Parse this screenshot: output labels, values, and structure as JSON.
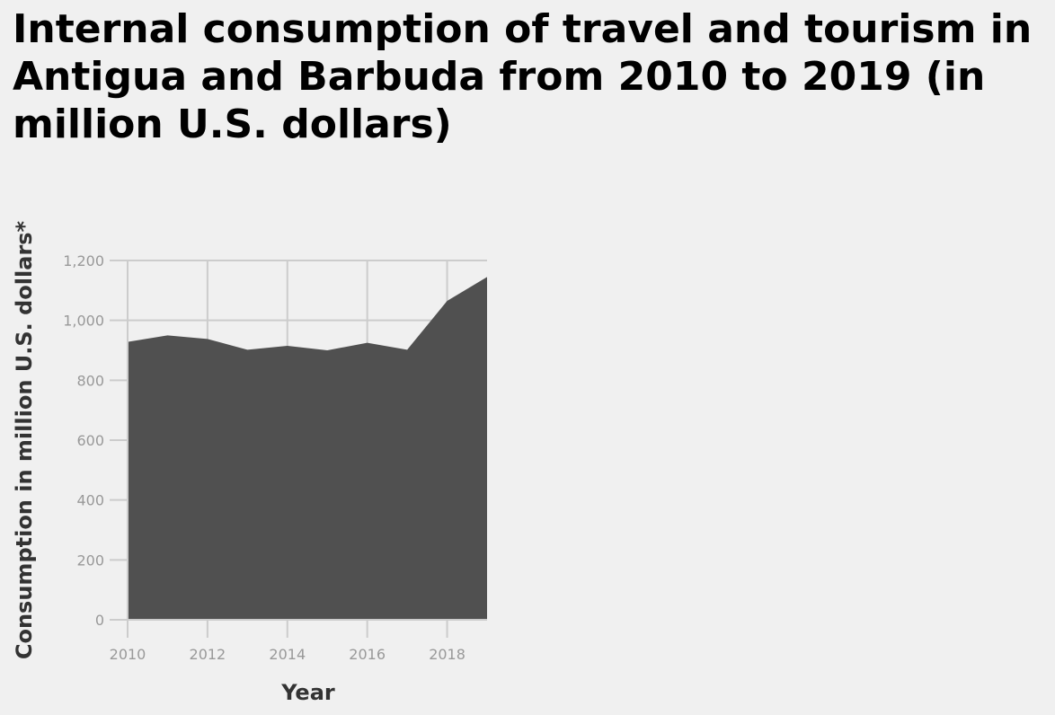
{
  "chart_data": {
    "type": "area",
    "title": "Internal consumption of travel and tourism in Antigua and Barbuda from 2010 to 2019 (in million U.S. dollars)",
    "xlabel": "Year",
    "ylabel": "Consumption in million U.S. dollars*",
    "x": [
      2010,
      2011,
      2012,
      2013,
      2014,
      2015,
      2016,
      2017,
      2018,
      2019
    ],
    "values": [
      928,
      950,
      938,
      902,
      915,
      900,
      925,
      902,
      1065,
      1145
    ],
    "xlim": [
      2010,
      2019
    ],
    "ylim": [
      0,
      1200
    ],
    "xticks": [
      2010,
      2012,
      2014,
      2016,
      2018
    ],
    "xtick_labels": [
      "2010",
      "2012",
      "2014",
      "2016",
      "2018"
    ],
    "yticks": [
      0,
      200,
      400,
      600,
      800,
      1000,
      1200
    ],
    "ytick_labels": [
      "0",
      "200",
      "400",
      "600",
      "800",
      "1,000",
      "1,200"
    ],
    "grid": true,
    "colors": {
      "fill": "#505050",
      "grid": "#cccccc",
      "tick_text": "#999999",
      "axis_title": "#333333",
      "background": "#f0f0f0"
    }
  }
}
